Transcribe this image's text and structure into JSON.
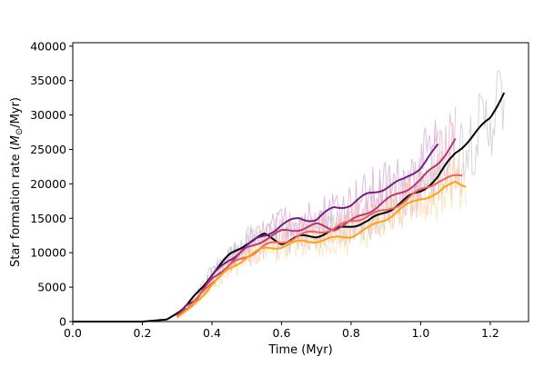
{
  "chart_data": {
    "type": "line",
    "xlabel": "Time (Myr)",
    "ylabel": "Star formation rate (M⊙/Myr)",
    "ylabel_parts": {
      "pre": "Star formation rate (",
      "sym": "M",
      "sub": "⊙",
      "post": "/Myr)"
    },
    "xlim": [
      0.0,
      1.31
    ],
    "ylim": [
      0,
      40500
    ],
    "xticks": [
      0.0,
      0.2,
      0.4,
      0.6,
      0.8,
      1.0,
      1.2
    ],
    "xtick_labels": [
      "0.0",
      "0.2",
      "0.4",
      "0.6",
      "0.8",
      "1.0",
      "1.2"
    ],
    "yticks": [
      0,
      5000,
      10000,
      15000,
      20000,
      25000,
      30000,
      35000,
      40000
    ],
    "ytick_labels": [
      "0",
      "5000",
      "10000",
      "15000",
      "20000",
      "25000",
      "30000",
      "35000",
      "40000"
    ],
    "grid": false,
    "legend": "none",
    "series": [
      {
        "color": "#000004",
        "raw_color": "#c8c8c8",
        "x": [
          0.0,
          0.2,
          0.27,
          0.3,
          0.33,
          0.36,
          0.4,
          0.45,
          0.5,
          0.55,
          0.6,
          0.65,
          0.7,
          0.75,
          0.8,
          0.85,
          0.9,
          0.95,
          1.0,
          1.05,
          1.1,
          1.15,
          1.2,
          1.24
        ],
        "y": [
          0,
          0,
          300,
          1200,
          2300,
          4200,
          7000,
          9500,
          11500,
          12500,
          11500,
          12200,
          12500,
          13200,
          14000,
          14500,
          16000,
          17500,
          19000,
          21000,
          24500,
          27000,
          29500,
          33500
        ]
      },
      {
        "color": "#721f81",
        "raw_color": "#cfa8da",
        "x": [
          0.3,
          0.35,
          0.4,
          0.45,
          0.5,
          0.55,
          0.6,
          0.65,
          0.7,
          0.75,
          0.8,
          0.85,
          0.9,
          0.95,
          1.0,
          1.05
        ],
        "y": [
          1000,
          3200,
          6500,
          9000,
          11000,
          12500,
          14000,
          15000,
          14800,
          16500,
          17000,
          18500,
          19500,
          20500,
          22500,
          25500
        ]
      },
      {
        "color": "#b63679",
        "raw_color": "#e6b0c8",
        "x": [
          0.3,
          0.35,
          0.4,
          0.45,
          0.5,
          0.55,
          0.6,
          0.65,
          0.7,
          0.75,
          0.8,
          0.85,
          0.9,
          0.95,
          1.0,
          1.05,
          1.1
        ],
        "y": [
          800,
          2900,
          6000,
          8500,
          10500,
          12000,
          13000,
          13500,
          14000,
          13500,
          14500,
          16000,
          17500,
          19000,
          20500,
          23000,
          26500
        ]
      },
      {
        "color": "#f1605d",
        "raw_color": "#f8c4b8",
        "x": [
          0.3,
          0.35,
          0.4,
          0.45,
          0.5,
          0.55,
          0.6,
          0.65,
          0.7,
          0.75,
          0.8,
          0.85,
          0.9,
          0.95,
          1.0,
          1.05,
          1.1,
          1.12
        ],
        "y": [
          700,
          2700,
          5800,
          8000,
          9500,
          11000,
          11500,
          12500,
          13000,
          13500,
          14500,
          15500,
          16000,
          17500,
          19000,
          20500,
          21000,
          21200
        ]
      },
      {
        "color": "#fca50a",
        "raw_color": "#fde0b0",
        "x": [
          0.3,
          0.35,
          0.4,
          0.45,
          0.5,
          0.55,
          0.6,
          0.65,
          0.7,
          0.75,
          0.8,
          0.85,
          0.9,
          0.95,
          1.0,
          1.05,
          1.1,
          1.13
        ],
        "y": [
          600,
          2500,
          5500,
          7500,
          9500,
          10500,
          11000,
          11500,
          11800,
          12000,
          12500,
          13500,
          15000,
          16500,
          18000,
          18500,
          20500,
          19800
        ]
      }
    ]
  }
}
